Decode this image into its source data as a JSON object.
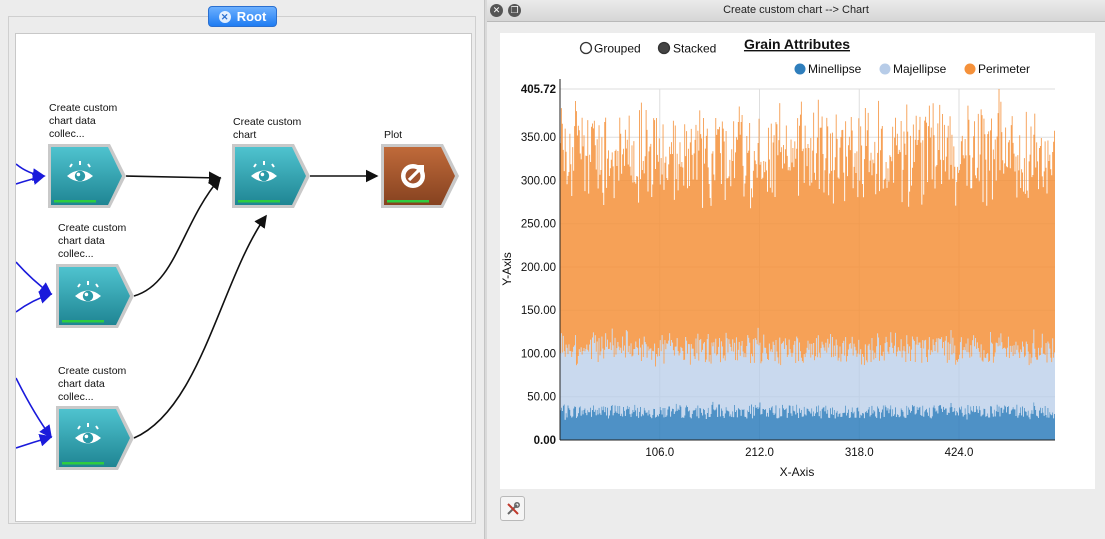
{
  "root_tab": {
    "label": "Root"
  },
  "workflow": {
    "nodes": [
      {
        "id": "ccdc1",
        "label_lines": [
          "Create custom",
          "chart data",
          "collec..."
        ],
        "icon": "eye-icon"
      },
      {
        "id": "ccdc2",
        "label_lines": [
          "Create custom",
          "chart data",
          "collec..."
        ],
        "icon": "eye-icon"
      },
      {
        "id": "ccdc3",
        "label_lines": [
          "Create custom",
          "chart data",
          "collec..."
        ],
        "icon": "eye-icon"
      },
      {
        "id": "cc",
        "label_lines": [
          "Create custom",
          "chart"
        ],
        "icon": "eye-icon"
      },
      {
        "id": "plot",
        "label_lines": [
          "Plot"
        ],
        "icon": "plot-arrow-icon"
      }
    ],
    "colors": {
      "teal": "#2ea3b0",
      "brown": "#a0522d",
      "status": "#2ecc40",
      "input_edge": "#1a1adb"
    }
  },
  "window": {
    "title": "Create custom chart --> Chart"
  },
  "chart_data": {
    "type": "bar",
    "stacked": true,
    "title": "Grain Attributes",
    "xlabel": "X-Axis",
    "ylabel": "Y-Axis",
    "mode_options": [
      {
        "label": "Grouped",
        "selected": false
      },
      {
        "label": "Stacked",
        "selected": true
      }
    ],
    "xlim": [
      0,
      526
    ],
    "ylim": [
      0,
      405.72
    ],
    "x_ticks": [
      106,
      212,
      318,
      424
    ],
    "x_tick_labels": [
      "106.0",
      "212.0",
      "318.0",
      "424.0"
    ],
    "y_ticks": [
      0,
      50,
      100,
      150,
      200,
      250,
      300,
      350,
      405.72
    ],
    "y_tick_labels": [
      "0.00",
      "50.00",
      "100.00",
      "150.00",
      "200.00",
      "250.00",
      "300.00",
      "350.00",
      "405.72"
    ],
    "legend_position": "top-right",
    "grid": true,
    "n_points": 526,
    "series": [
      {
        "name": "Minellipse",
        "color": "#2f7ebc",
        "typical": 33,
        "min": 22,
        "max": 45
      },
      {
        "name": "Majellipse",
        "color": "#b7cce8",
        "typical": 72,
        "min": 55,
        "max": 95
      },
      {
        "name": "Perimeter",
        "color": "#f5913a",
        "typical": 225,
        "min": 160,
        "max": 300
      }
    ],
    "stack_total_max": 405.72
  }
}
